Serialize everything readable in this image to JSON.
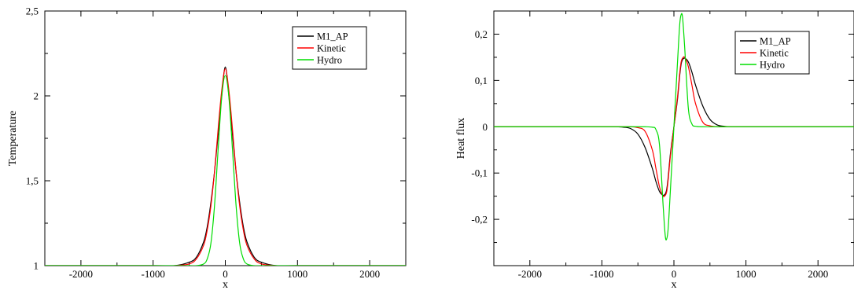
{
  "chart_data": [
    {
      "type": "line",
      "title": "",
      "xlabel": "x",
      "ylabel": "Temperature",
      "xlim": [
        -2500,
        2500
      ],
      "ylim": [
        1,
        2.5
      ],
      "xticks": [
        -2000,
        -1000,
        0,
        1000,
        2000
      ],
      "xtick_labels": [
        "-2000",
        "-1000",
        "0",
        "1000",
        "2000"
      ],
      "yticks": [
        1,
        1.5,
        2,
        2.5
      ],
      "ytick_labels": [
        "1",
        "1,5",
        "2",
        "2,5"
      ],
      "grid": false,
      "legend_position": "top-right",
      "x": [
        -2500,
        -1000,
        -700,
        -500,
        -400,
        -300,
        -250,
        -200,
        -150,
        -100,
        -50,
        0,
        50,
        100,
        150,
        200,
        250,
        300,
        400,
        500,
        700,
        1000,
        2500
      ],
      "series": [
        {
          "name": "M1_AP",
          "color": "#000000",
          "values": [
            1.0,
            1.0,
            1.0,
            1.02,
            1.05,
            1.14,
            1.23,
            1.37,
            1.55,
            1.77,
            2.0,
            2.17,
            2.0,
            1.77,
            1.55,
            1.37,
            1.23,
            1.14,
            1.05,
            1.02,
            1.0,
            1.0,
            1.0
          ]
        },
        {
          "name": "Kinetic",
          "color": "#ff0000",
          "values": [
            1.0,
            1.0,
            1.0,
            1.01,
            1.04,
            1.12,
            1.21,
            1.35,
            1.55,
            1.8,
            2.03,
            2.16,
            2.03,
            1.8,
            1.55,
            1.35,
            1.21,
            1.12,
            1.04,
            1.01,
            1.0,
            1.0,
            1.0
          ]
        },
        {
          "name": "Hydro",
          "color": "#00dd00",
          "values": [
            1.0,
            1.0,
            1.0,
            1.0,
            1.0,
            1.01,
            1.04,
            1.13,
            1.35,
            1.68,
            1.99,
            2.12,
            1.99,
            1.68,
            1.35,
            1.13,
            1.04,
            1.01,
            1.0,
            1.0,
            1.0,
            1.0,
            1.0
          ]
        }
      ]
    },
    {
      "type": "line",
      "title": "",
      "xlabel": "x",
      "ylabel": "Heat flux",
      "xlim": [
        -2500,
        2500
      ],
      "ylim": [
        -0.3,
        0.25
      ],
      "xticks": [
        -2000,
        -1000,
        0,
        1000,
        2000
      ],
      "xtick_labels": [
        "-2000",
        "-1000",
        "0",
        "1000",
        "2000"
      ],
      "yticks": [
        -0.2,
        -0.1,
        0,
        0.1,
        0.2
      ],
      "ytick_labels": [
        "-0,2",
        "-0,1",
        "0",
        "0,1",
        "0,2"
      ],
      "grid": false,
      "legend_position": "top-right",
      "x": [
        -2500,
        -1000,
        -800,
        -700,
        -600,
        -500,
        -400,
        -300,
        -250,
        -200,
        -150,
        -120,
        -100,
        -80,
        -50,
        0,
        50,
        80,
        100,
        120,
        150,
        200,
        250,
        300,
        400,
        500,
        600,
        700,
        800,
        1000,
        2500
      ],
      "series": [
        {
          "name": "M1_AP",
          "color": "#000000",
          "values": [
            0.0,
            0.0,
            0.0,
            -0.001,
            -0.004,
            -0.016,
            -0.045,
            -0.09,
            -0.118,
            -0.14,
            -0.148,
            -0.145,
            -0.135,
            -0.11,
            -0.06,
            0.0,
            0.06,
            0.11,
            0.135,
            0.145,
            0.148,
            0.14,
            0.118,
            0.09,
            0.045,
            0.016,
            0.004,
            0.001,
            0.0,
            0.0,
            0.0
          ]
        },
        {
          "name": "Kinetic",
          "color": "#ff0000",
          "values": [
            0.0,
            0.0,
            0.0,
            0.0,
            0.0,
            -0.002,
            -0.01,
            -0.05,
            -0.09,
            -0.13,
            -0.15,
            -0.148,
            -0.14,
            -0.115,
            -0.065,
            0.0,
            0.065,
            0.115,
            0.14,
            0.148,
            0.15,
            0.13,
            0.09,
            0.05,
            0.01,
            0.002,
            0.0,
            0.0,
            0.0,
            0.0,
            0.0
          ]
        },
        {
          "name": "Hydro",
          "color": "#00dd00",
          "values": [
            0.0,
            0.0,
            0.0,
            0.0,
            0.0,
            0.0,
            0.0,
            -0.001,
            -0.006,
            -0.04,
            -0.17,
            -0.236,
            -0.242,
            -0.22,
            -0.14,
            0.0,
            0.14,
            0.22,
            0.242,
            0.236,
            0.17,
            0.04,
            0.006,
            0.001,
            0.0,
            0.0,
            0.0,
            0.0,
            0.0,
            0.0,
            0.0
          ]
        }
      ]
    }
  ]
}
